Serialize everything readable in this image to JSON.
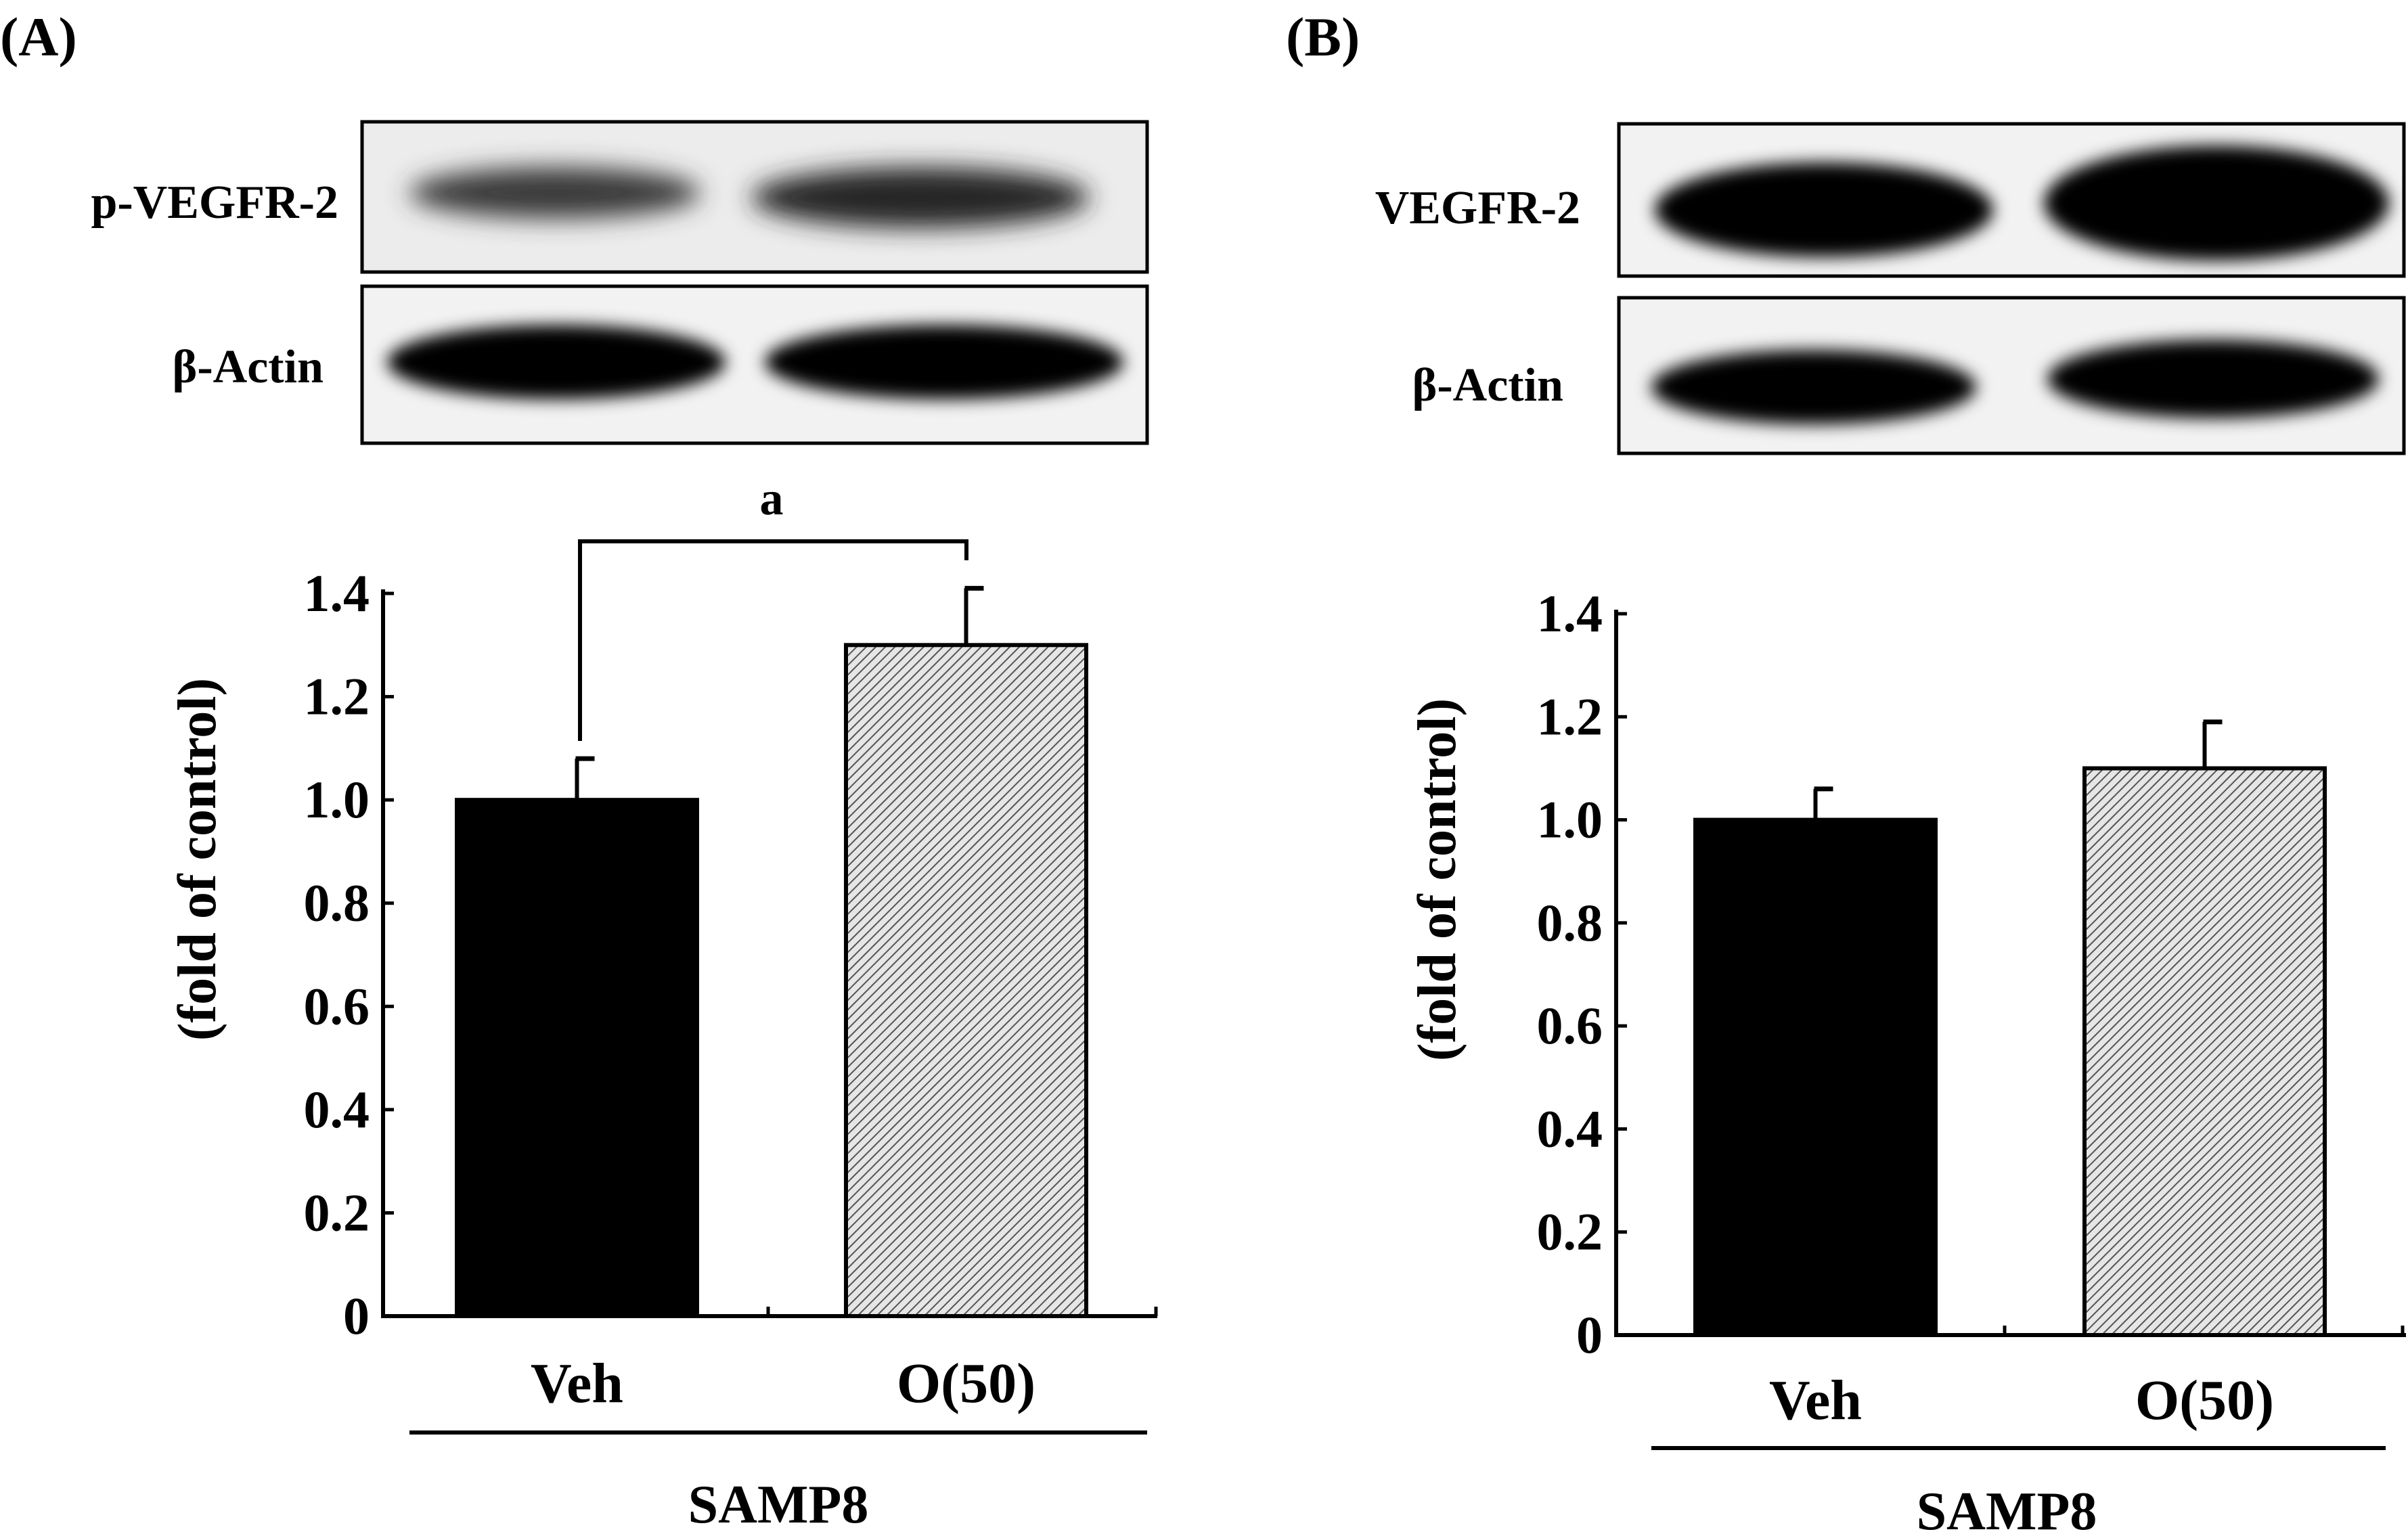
{
  "panels": [
    {
      "label": "(A)",
      "blot_top_label": "p-VEGFR-2",
      "blot_bottom_label": "β-Actin",
      "significance_label": "a",
      "group_label": "SAMP8"
    },
    {
      "label": "(B)",
      "blot_top_label": "VEGFR-2",
      "blot_bottom_label": "β-Actin",
      "significance_label": "",
      "group_label": "SAMP8"
    }
  ],
  "colors": {
    "veh_bar": "#000000",
    "o50_bar": "hatched",
    "axis": "#000000"
  },
  "chart_data": [
    {
      "type": "bar",
      "title": "",
      "xlabel": "SAMP8",
      "ylabel": "(fold of control)",
      "ylim": [
        0,
        1.4
      ],
      "yticks": [
        "0",
        "0.2",
        "0.4",
        "0.6",
        "0.8",
        "1.0",
        "1.2",
        "1.4"
      ],
      "categories": [
        "Veh",
        "O(50)"
      ],
      "values": [
        1.0,
        1.3
      ],
      "errors": [
        0.08,
        0.11
      ],
      "grid": false
    },
    {
      "type": "bar",
      "title": "",
      "xlabel": "SAMP8",
      "ylabel": "(fold of control)",
      "ylim": [
        0,
        1.4
      ],
      "yticks": [
        "0",
        "0.2",
        "0.4",
        "0.6",
        "0.8",
        "1.0",
        "1.2",
        "1.4"
      ],
      "categories": [
        "Veh",
        "O(50)"
      ],
      "values": [
        1.0,
        1.1
      ],
      "errors": [
        0.06,
        0.09
      ],
      "grid": false
    }
  ]
}
